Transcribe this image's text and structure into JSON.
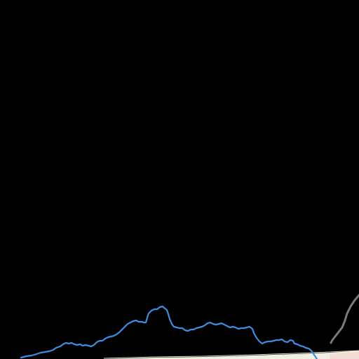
{
  "map": {
    "background_color": "#000000",
    "features": [
      {
        "id": "river",
        "kind": "waterway",
        "color": "#3d8de0"
      },
      {
        "id": "road",
        "kind": "road",
        "color": "#7a7a7a"
      },
      {
        "id": "land-strip",
        "kind": "land",
        "color": "#eef0e2",
        "accent_color": "#f3dcd6"
      }
    ]
  }
}
